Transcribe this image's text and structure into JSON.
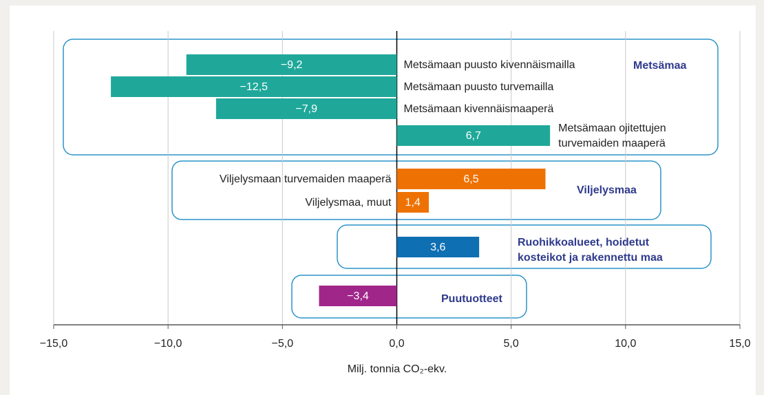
{
  "chart_data": {
    "type": "hbar",
    "categories": [
      "Metsämaan puusto kivennäismailla",
      "Metsämaan puusto turvemailla",
      "Metsämaan kivennäismaaperä",
      "Metsämaan ojitettujen\nturvemaiden maaperä",
      "Viljelysmaan turvemaiden maaperä",
      "Viljelysmaa, muut",
      null,
      null
    ],
    "values": [
      -9.2,
      -12.5,
      -7.9,
      6.7,
      6.5,
      1.4,
      3.6,
      -3.4
    ],
    "value_labels": [
      "−9,2",
      "−12,5",
      "−7,9",
      "6,7",
      "6,5",
      "1,4",
      "3,6",
      "−3,4"
    ],
    "colors": [
      "#1fa89a",
      "#1fa89a",
      "#1fa89a",
      "#1fa89a",
      "#ee7203",
      "#ee7203",
      "#0f6fb3",
      "#a0268a"
    ],
    "groups": [
      {
        "label": "Metsämaa"
      },
      {
        "label": "Viljelysmaa"
      },
      {
        "label": "Ruohikkoalueet, hoidetut\nkosteikot ja rakennettu maa"
      },
      {
        "label": "Puutuotteet"
      }
    ],
    "xlabel": "Milj. tonnia CO₂-ekv.",
    "xlim": [
      -15,
      15
    ],
    "xticks": [
      {
        "value": -15,
        "label": "−15,0"
      },
      {
        "value": -10,
        "label": "−10,0"
      },
      {
        "value": -5,
        "label": "−5,0"
      },
      {
        "value": 0,
        "label": "0,0"
      },
      {
        "value": 5,
        "label": "5,0"
      },
      {
        "value": 10,
        "label": "10,0"
      },
      {
        "value": 15,
        "label": "15,0"
      }
    ],
    "grid": true
  }
}
